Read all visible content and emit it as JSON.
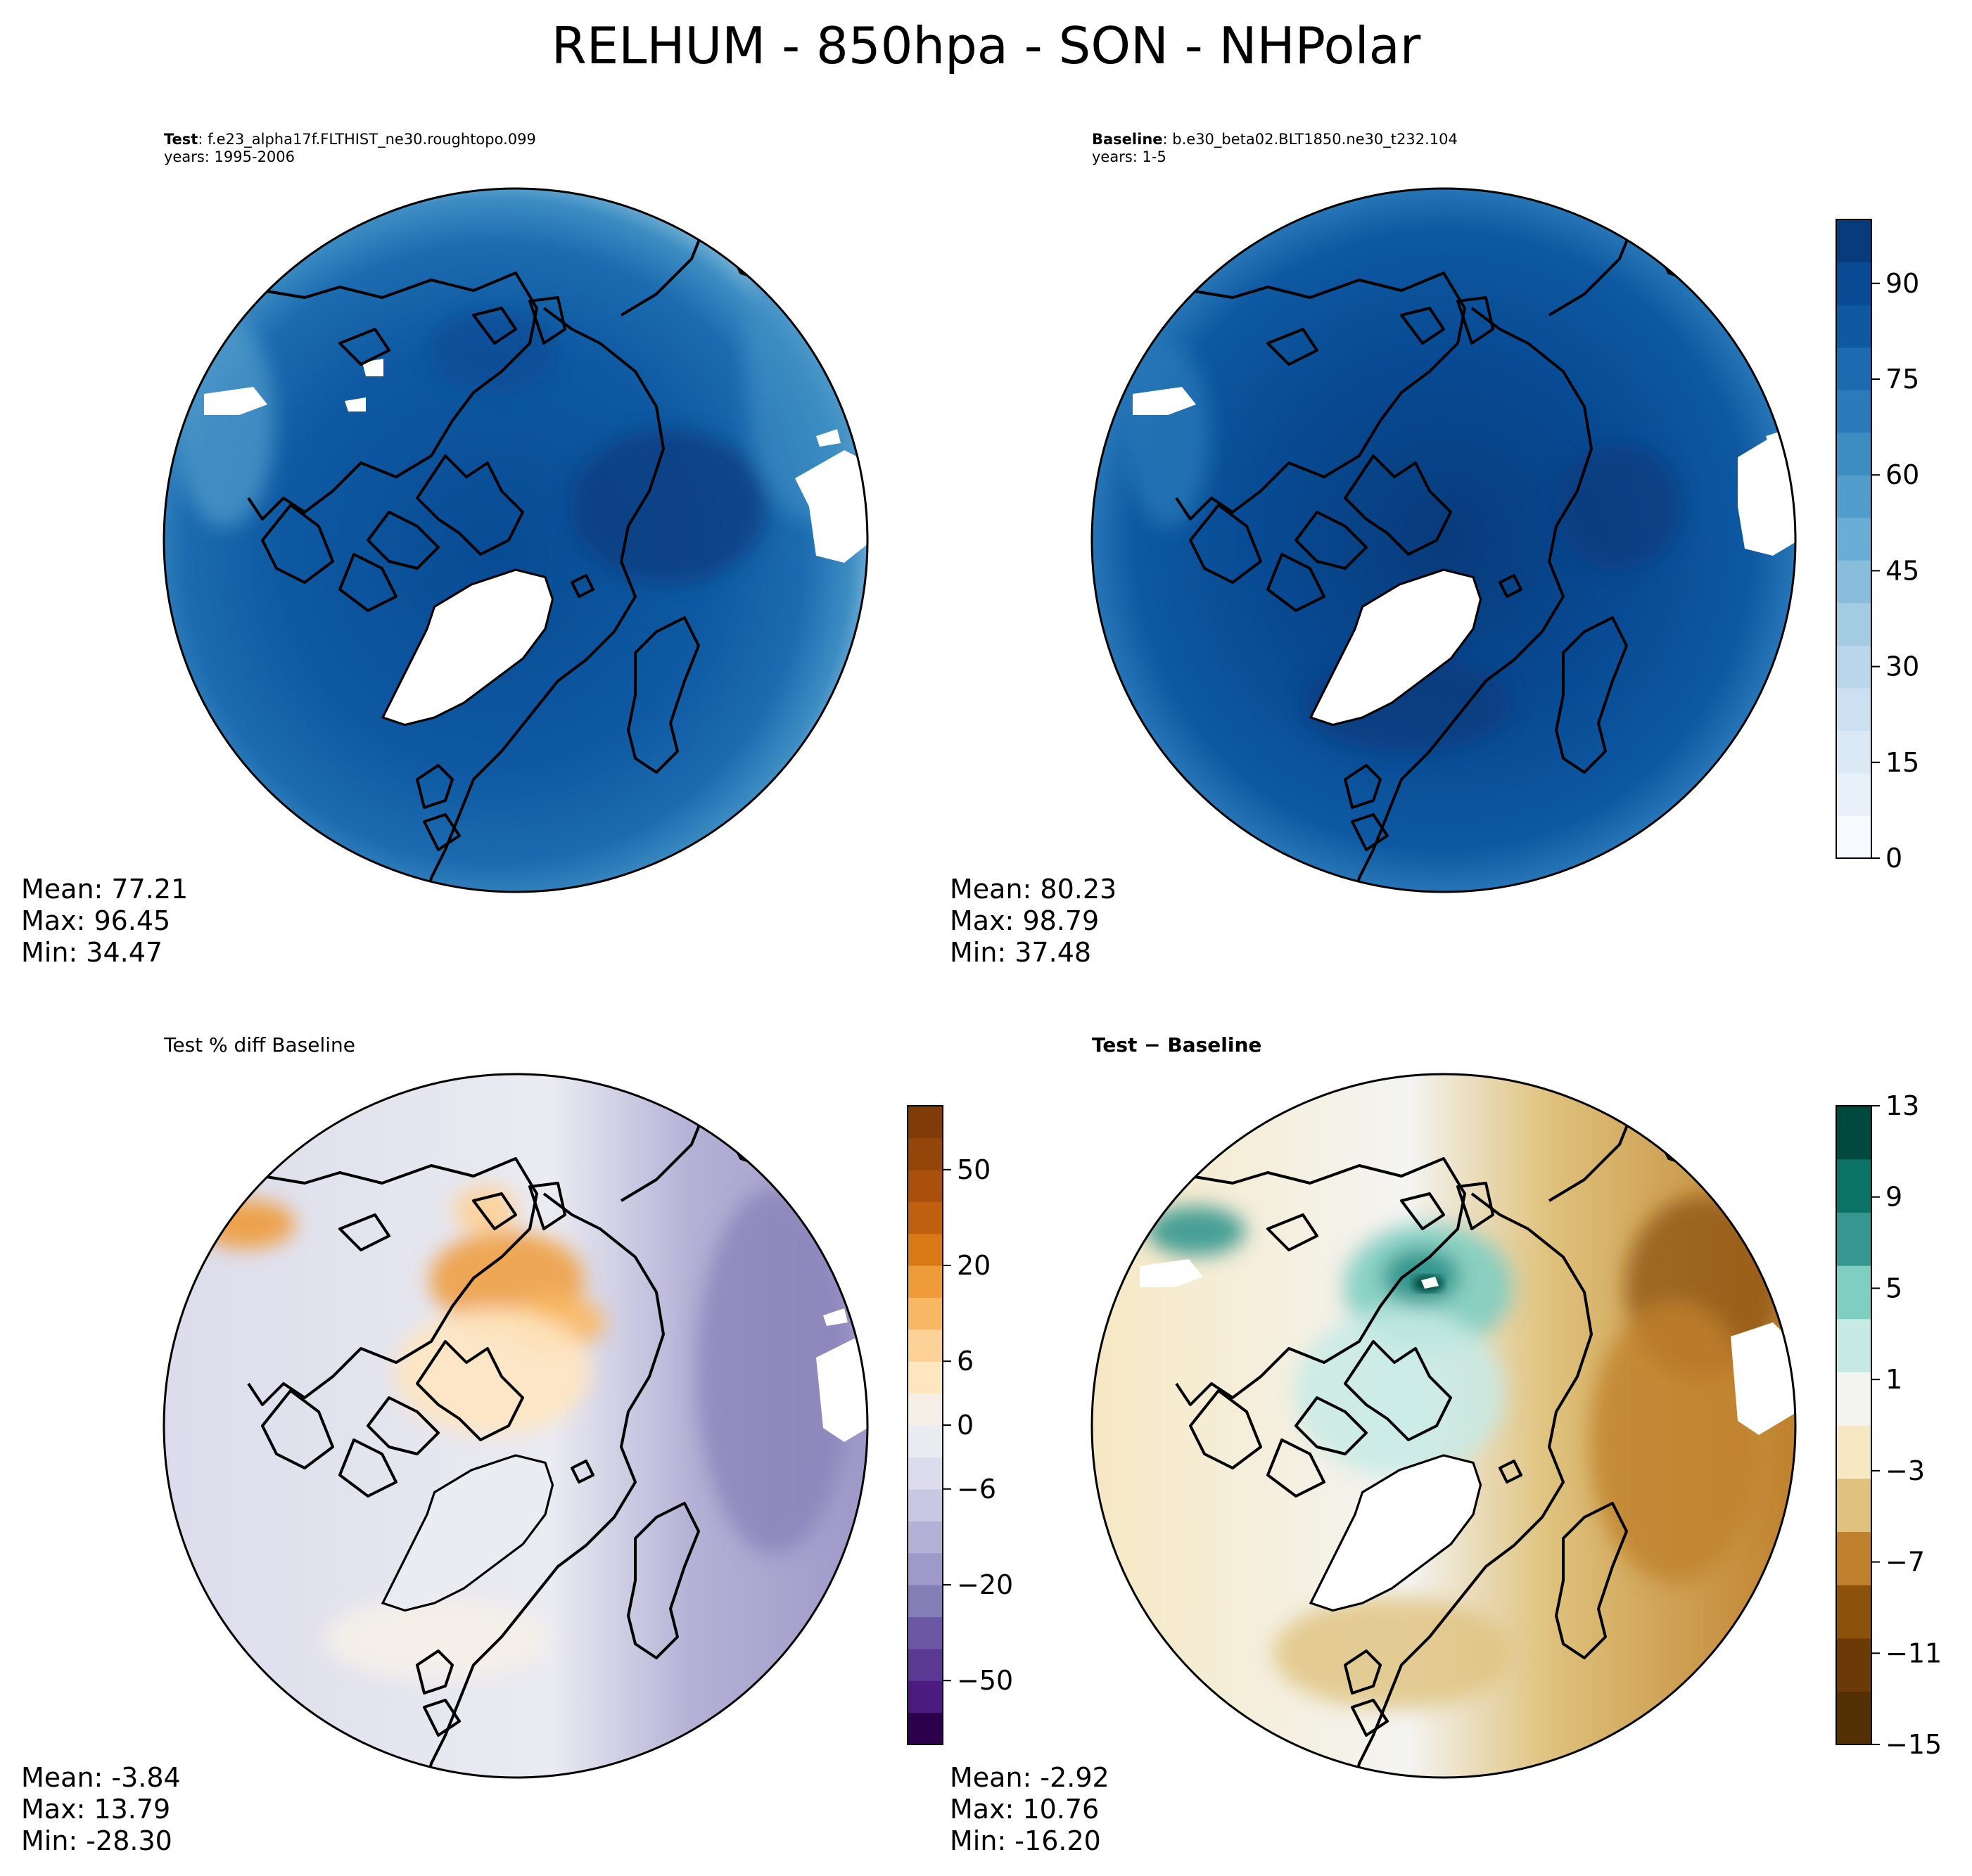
{
  "chart_data": {
    "type": "heatmap",
    "title": "RELHUM - 850hpa - SON - NHPolar",
    "panels": [
      {
        "id": "test",
        "title_bold": "Test",
        "title_rest": ": f.e23_alpha17f.FLTHIST_ne30.roughtopo.099",
        "title_line2": "years: 1995-2006",
        "stats": {
          "mean": "Mean: 77.21",
          "max": "Max: 96.45",
          "min": "Min: 34.47"
        },
        "colormap": "Blues"
      },
      {
        "id": "baseline",
        "title_bold": "Baseline",
        "title_rest": ": b.e30_beta02.BLT1850.ne30_t232.104",
        "title_line2": "years: 1-5",
        "stats": {
          "mean": "Mean: 80.23",
          "max": "Max: 98.79",
          "min": "Min: 37.48"
        },
        "colormap": "Blues"
      },
      {
        "id": "pctdiff",
        "title": "Test % diff Baseline",
        "stats": {
          "mean": "Mean: -3.84",
          "max": "Max: 13.79",
          "min": "Min: -28.30"
        },
        "colormap": "PuOr_r"
      },
      {
        "id": "diff",
        "title": "Test − Baseline",
        "stats": {
          "mean": "Mean: -2.92",
          "max": "Max: 10.76",
          "min": "Min: -16.20"
        },
        "colormap": "BrBG"
      }
    ],
    "colorbars": {
      "fields": {
        "tick_labels": [
          "0",
          "15",
          "30",
          "45",
          "60",
          "75",
          "90"
        ],
        "tick_values": [
          0,
          15,
          30,
          45,
          60,
          75,
          90
        ],
        "range": [
          0,
          100
        ],
        "colors": [
          "#f7fbff",
          "#e8f1fa",
          "#dbe9f6",
          "#cde0f1",
          "#bad6eb",
          "#a3cce3",
          "#88bedc",
          "#6aaed6",
          "#529dcc",
          "#3d8dc3",
          "#2b7bba",
          "#1c6bb0",
          "#0e59a2",
          "#084b94",
          "#083b7c"
        ]
      },
      "pctdiff": {
        "tick_labels": [
          "50",
          "20",
          "6",
          "0",
          "−6",
          "−20",
          "−50"
        ],
        "colors_top_to_bottom": [
          "#7f3b08",
          "#93450a",
          "#a8500c",
          "#c05f0f",
          "#d97a16",
          "#ee9b3a",
          "#f8b863",
          "#fdd197",
          "#fee6c0",
          "#f5efe8",
          "#ebebf2",
          "#dcdcec",
          "#c9c8e2",
          "#b4b1d6",
          "#9e99c8",
          "#857eb6",
          "#6b57a3",
          "#5a3992",
          "#4b1b80",
          "#2d004b"
        ]
      },
      "diff": {
        "tick_labels": [
          "13",
          "9",
          "5",
          "1",
          "−3",
          "−7",
          "−11",
          "−15"
        ],
        "tick_values": [
          13,
          9,
          5,
          1,
          -3,
          -7,
          -11,
          -15
        ],
        "range": [
          -15,
          13
        ],
        "colors_top_to_bottom": [
          "#01493f",
          "#0b7266",
          "#35978f",
          "#80cdc1",
          "#c7eae5",
          "#f4f4f2",
          "#f6e8c3",
          "#dfc27d",
          "#bf812d",
          "#8c510a",
          "#6b3a06",
          "#543005"
        ]
      }
    }
  }
}
